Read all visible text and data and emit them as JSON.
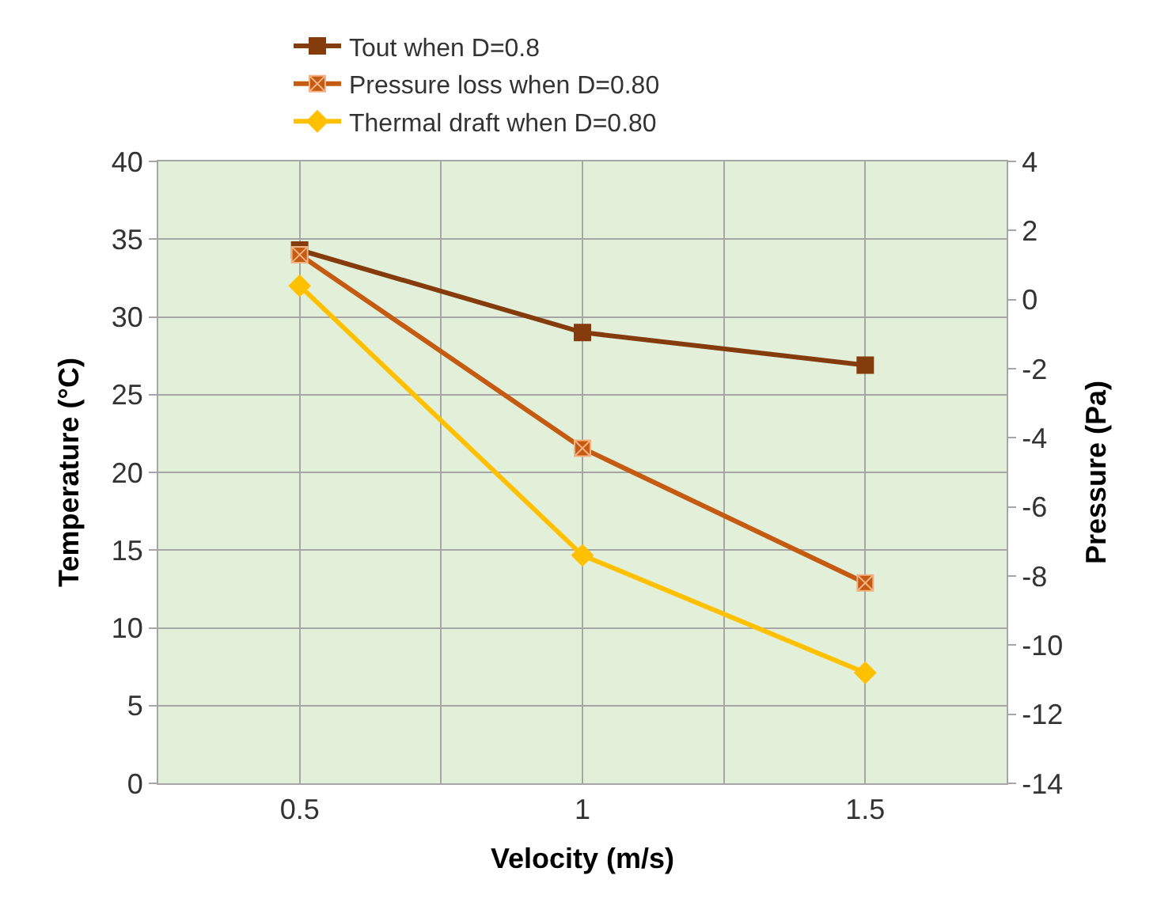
{
  "chart_data": {
    "type": "line",
    "xlabel": "Velocity (m/s)",
    "ylabel": "Temperature (°C)",
    "y2label": "Pressure (Pa)",
    "x": [
      0.5,
      1,
      1.5
    ],
    "series": [
      {
        "name": "Tout when D=0.8",
        "color": "#843c0c",
        "values": [
          34.3,
          29.0,
          26.9
        ],
        "marker": "square"
      },
      {
        "name": "Pressure loss when D=0.80",
        "color": "#c55a11",
        "values": [
          1.3,
          -4.3,
          -8.2
        ],
        "marker": "cross",
        "axis": "y2"
      },
      {
        "name": "Thermal draft when D=0.80",
        "color": "#ffc000",
        "values": [
          0.4,
          -7.4,
          -10.8
        ],
        "marker": "diamond",
        "axis": "y2"
      }
    ],
    "xlim": [
      0.25,
      1.75
    ],
    "xticks": [
      {
        "value": 0.25,
        "label": null
      },
      0.5,
      {
        "value": 0.75,
        "label": null
      },
      1,
      {
        "value": 1.25,
        "label": null
      },
      1.5,
      {
        "value": 1.75,
        "label": null
      }
    ],
    "ylim": [
      0,
      40
    ],
    "yticks": [
      0,
      5,
      10,
      15,
      20,
      25,
      30,
      35,
      40
    ],
    "y2lim": [
      -14,
      4
    ],
    "y2ticks": [
      -14,
      -12,
      -10,
      -8,
      -6,
      -4,
      -2,
      0,
      2,
      4
    ],
    "grid": true,
    "legend": "top",
    "line_style": "solid"
  }
}
